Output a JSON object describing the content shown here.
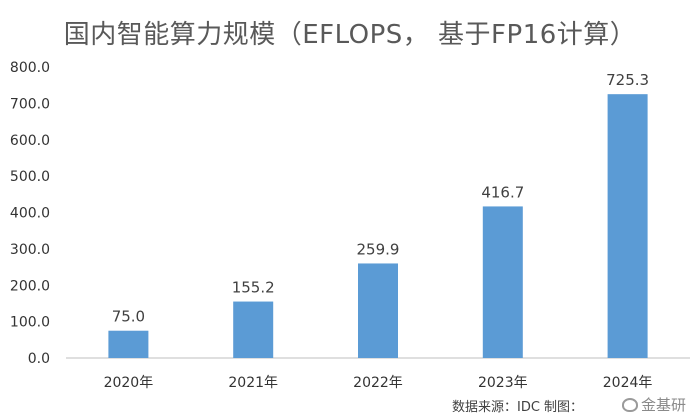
{
  "chart_data": {
    "type": "bar",
    "title": "国内智能算力规模（EFLOPS， 基于FP16计算）",
    "categories": [
      "2020年",
      "2021年",
      "2022年",
      "2023年",
      "2024年"
    ],
    "values": [
      75.0,
      155.2,
      259.9,
      416.7,
      725.3
    ],
    "data_labels": [
      "75.0",
      "155.2",
      "259.9",
      "416.7",
      "725.3"
    ],
    "yticks": [
      "0.0",
      "100.0",
      "200.0",
      "300.0",
      "400.0",
      "500.0",
      "600.0",
      "700.0",
      "800.0"
    ],
    "ylim": [
      0,
      800
    ],
    "grid": false,
    "legend": "none",
    "bar_color": "#5B9BD5"
  },
  "footer": {
    "source": "数据来源：IDC    制图：",
    "watermark": "金基研"
  }
}
